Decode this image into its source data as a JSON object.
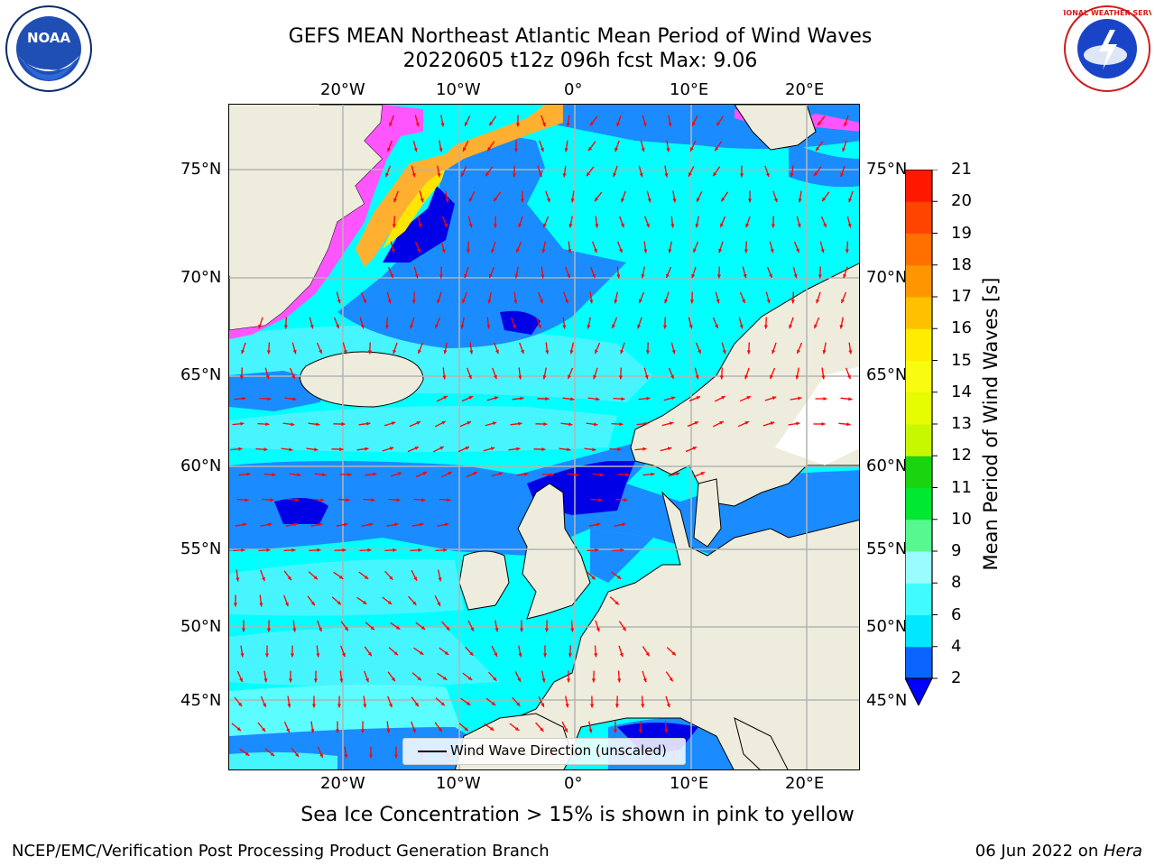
{
  "title": {
    "line1": "GEFS MEAN Northeast Atlantic Mean Period of Wind Waves",
    "line2": "20220605 t12z 096h fcst   Max: 9.06"
  },
  "axes": {
    "lon_ticks": [
      "20°W",
      "10°W",
      "0°",
      "10°E",
      "20°E"
    ],
    "lat_ticks": [
      "75°N",
      "70°N",
      "65°N",
      "60°N",
      "55°N",
      "50°N",
      "45°N"
    ]
  },
  "legend": {
    "label": "Wind Wave Direction (unscaled)"
  },
  "colorbar": {
    "label": "Mean Period of Wind Waves [s]",
    "ticks": [
      "2",
      "4",
      "6",
      "8",
      "9",
      "10",
      "11",
      "12",
      "13",
      "14",
      "15",
      "16",
      "17",
      "18",
      "19",
      "20",
      "21"
    ],
    "colors": [
      "#0a64ff",
      "#00e8ff",
      "#40fcff",
      "#9afcff",
      "#58f890",
      "#00e830",
      "#1ad410",
      "#c8f800",
      "#e6fc00",
      "#f8fc10",
      "#ffec00",
      "#ffc000",
      "#ff9600",
      "#ff7000",
      "#ff4400",
      "#ff1800"
    ],
    "under_color": "#0000ff"
  },
  "map_colors": {
    "land": "#eeecdc",
    "water_band_light": "#00ffff",
    "water_band_mid": "#46f5ff",
    "water_band_blue": "#1a8cff",
    "water_deep": "#0000e6",
    "ice_pink": "#ff55ff",
    "ice_orange": "#ffb030",
    "ice_yellow": "#ffe600",
    "arrows": "#ff0000",
    "grid": "#b4b4b4",
    "coast": "#000000"
  },
  "footer": {
    "caption": "Sea Ice Concentration > 15% is shown in pink to yellow",
    "credit": "NCEP/EMC/Verification Post Processing Product Generation Branch",
    "date_prefix": "06 Jun 2022 on ",
    "machine": "Hera"
  },
  "logos": {
    "noaa": "NOAA",
    "nws": "NATIONAL WEATHER SERVICE"
  }
}
